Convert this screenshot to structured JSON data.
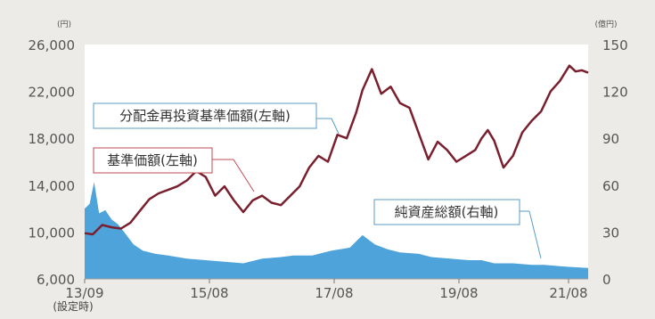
{
  "chart_data": {
    "type": "line",
    "title": "",
    "left_axis": {
      "unit": "(円)",
      "ticks": [
        "26,000",
        "22,000",
        "18,000",
        "14,000",
        "10,000",
        "6,000"
      ],
      "ylim": [
        6000,
        26000
      ]
    },
    "right_axis": {
      "unit": "(億円)",
      "ticks": [
        "150",
        "120",
        "90",
        "60",
        "30",
        "0"
      ],
      "ylim": [
        0,
        150
      ]
    },
    "x_ticks": [
      "13/09",
      "15/08",
      "17/08",
      "19/08",
      "21/08"
    ],
    "x_note": "(設定時)",
    "x_range": [
      2013.67,
      2021.7
    ],
    "series": [
      {
        "name": "分配金再投資基準価額(左軸)",
        "axis": "left",
        "color": "#7a1f2e",
        "x": [
          2013.67,
          2013.8,
          2013.95,
          2014.1,
          2014.25,
          2014.4,
          2014.55,
          2014.7,
          2014.85,
          2015.0,
          2015.15,
          2015.3,
          2015.45,
          2015.6,
          2015.75,
          2015.9,
          2016.05,
          2016.2,
          2016.35,
          2016.5,
          2016.65,
          2016.8,
          2016.95,
          2017.1,
          2017.25,
          2017.4,
          2017.55,
          2017.7,
          2017.85,
          2018.0,
          2018.1,
          2018.25,
          2018.4,
          2018.55,
          2018.7,
          2018.85,
          2019.0,
          2019.15,
          2019.3,
          2019.45,
          2019.6,
          2019.75,
          2019.9,
          2020.0,
          2020.1,
          2020.2,
          2020.35,
          2020.5,
          2020.65,
          2020.8,
          2020.95,
          2021.1,
          2021.25,
          2021.4,
          2021.5,
          2021.6,
          2021.7
        ],
        "values": [
          9900,
          9800,
          10600,
          10400,
          10300,
          10800,
          11800,
          12800,
          13300,
          13600,
          13900,
          14400,
          15200,
          14700,
          13100,
          13900,
          12700,
          11700,
          12700,
          13100,
          12500,
          12300,
          13100,
          13900,
          15500,
          16500,
          16000,
          18300,
          18000,
          20200,
          22100,
          23900,
          21800,
          22400,
          21000,
          20600,
          18400,
          16200,
          17700,
          17000,
          16000,
          16500,
          17000,
          18000,
          18700,
          17800,
          15500,
          16500,
          18500,
          19500,
          20300,
          22000,
          22900,
          24200,
          23700,
          23800,
          23600
        ]
      },
      {
        "name": "基準価額(左軸)",
        "axis": "left",
        "color": "#7a1f2e",
        "x": [],
        "values": []
      },
      {
        "name": "純資産総額(右軸)",
        "axis": "right",
        "color": "#4fa3db",
        "x": [
          2013.67,
          2013.75,
          2013.82,
          2013.9,
          2014.0,
          2014.1,
          2014.2,
          2014.3,
          2014.45,
          2014.6,
          2014.8,
          2015.0,
          2015.3,
          2015.6,
          2015.9,
          2016.2,
          2016.5,
          2016.8,
          2017.0,
          2017.3,
          2017.6,
          2017.9,
          2018.1,
          2018.3,
          2018.5,
          2018.7,
          2019.0,
          2019.2,
          2019.5,
          2019.8,
          2020.0,
          2020.2,
          2020.5,
          2020.8,
          2021.0,
          2021.3,
          2021.7
        ],
        "values": [
          45,
          48,
          62,
          42,
          44,
          38,
          35,
          30,
          22,
          18,
          16,
          15,
          13,
          12,
          11,
          10,
          13,
          14,
          15,
          15,
          18,
          20,
          28,
          22,
          19,
          17,
          16,
          14,
          13,
          12,
          12,
          10,
          10,
          9,
          9,
          8,
          7
        ]
      }
    ],
    "legend": [
      "分配金再投資基準価額(左軸)",
      "基準価額(左軸)",
      "純資産総額(右軸)"
    ],
    "grid": false,
    "colors": {
      "background": "#ecebe7",
      "plot": "#ffffff",
      "line": "#7a1f2e",
      "area": "#4fa3db",
      "callout_blue": "#5b9cc4",
      "callout_red": "#c14b52"
    }
  }
}
